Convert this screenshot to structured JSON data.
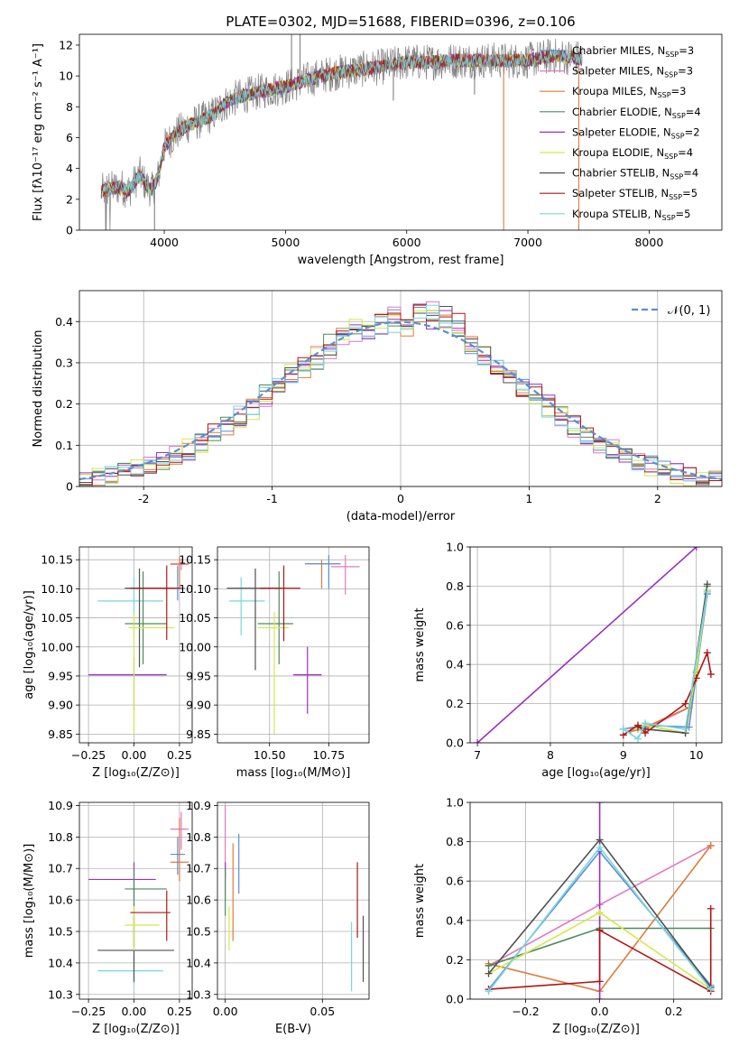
{
  "figure": {
    "title": "PLATE=0302, MJD=51688, FIBERID=0396, z=0.106"
  },
  "chart_data": [
    {
      "id": "spectrum",
      "type": "line",
      "xlabel": "wavelength [Angstrom, rest frame]",
      "ylabel": "Flux [fλ10⁻¹⁷ erg cm⁻² s⁻¹ A⁻¹]",
      "xlim": [
        3300,
        8600
      ],
      "ylim": [
        0,
        12.7
      ],
      "xticks": [
        4000,
        5000,
        6000,
        7000,
        8000
      ],
      "yticks": [
        0,
        2,
        4,
        6,
        8,
        10,
        12
      ],
      "grid": false,
      "legend_position": "top-right",
      "continuum": {
        "x": [
          3480,
          3550,
          3650,
          3700,
          3800,
          3850,
          3900,
          3950,
          4000,
          4100,
          4200,
          4300,
          4400,
          4500,
          4600,
          4800,
          5000,
          5200,
          5400,
          5600,
          5800,
          6000,
          6200,
          6400,
          6600,
          6800,
          7000,
          7200,
          7400,
          7500
        ],
        "y": [
          2.5,
          2.7,
          2.8,
          2.5,
          3.6,
          2.9,
          2.6,
          3.5,
          5.4,
          6.3,
          6.8,
          7.1,
          7.5,
          8.2,
          8.6,
          9.0,
          9.3,
          9.8,
          10.2,
          10.4,
          10.6,
          10.9,
          10.9,
          11.0,
          11.0,
          11.0,
          11.0,
          11.3,
          11.2,
          11.0
        ]
      },
      "noise_spikes": [
        {
          "x": 5050,
          "y": 12.7
        },
        {
          "x": 5120,
          "y": 13.0
        },
        {
          "x": 5890,
          "y": 8.4
        },
        {
          "x": 6560,
          "y": 8.8
        },
        {
          "x": 6800,
          "y": 0.0
        },
        {
          "x": 7420,
          "y": 0.0
        },
        {
          "x": 3520,
          "y": 0.0
        },
        {
          "x": 3920,
          "y": 0.0
        }
      ],
      "series": [
        {
          "name_main": "Chabrier MILES, N",
          "name_sub": "SSP",
          "name_tail": "=3",
          "color": "#5b8ed6"
        },
        {
          "name_main": "Salpeter MILES, N",
          "name_sub": "SSP",
          "name_tail": "=3",
          "color": "#e377c2"
        },
        {
          "name_main": "Kroupa MILES, N",
          "name_sub": "SSP",
          "name_tail": "=3",
          "color": "#e07b39"
        },
        {
          "name_main": "Chabrier ELODIE, N",
          "name_sub": "SSP",
          "name_tail": "=4",
          "color": "#4d8a5c"
        },
        {
          "name_main": "Salpeter ELODIE, N",
          "name_sub": "SSP",
          "name_tail": "=2",
          "color": "#9b30c0"
        },
        {
          "name_main": "Kroupa ELODIE, N",
          "name_sub": "SSP",
          "name_tail": "=4",
          "color": "#d4e84a"
        },
        {
          "name_main": "Chabrier STELIB, N",
          "name_sub": "SSP",
          "name_tail": "=4",
          "color": "#505050"
        },
        {
          "name_main": "Salpeter STELIB, N",
          "name_sub": "SSP",
          "name_tail": "=5",
          "color": "#b01515"
        },
        {
          "name_main": "Kroupa STELIB, N",
          "name_sub": "SSP",
          "name_tail": "=5",
          "color": "#76d7e0"
        }
      ]
    },
    {
      "id": "residuals",
      "type": "line",
      "xlabel": "(data-model)/error",
      "ylabel": "Normed distribution",
      "xlim": [
        -2.5,
        2.5
      ],
      "ylim": [
        0,
        0.475
      ],
      "xticks": [
        -2,
        -1,
        0,
        1,
        2
      ],
      "yticks": [
        0.0,
        0.1,
        0.2,
        0.3,
        0.4
      ],
      "grid": true,
      "legend_position": "top-right",
      "gaussian_label": "𝒩(0, 1)",
      "gaussian_color": "#5b8ed6",
      "bin_width": 0.1
    },
    {
      "id": "age_vs_Z",
      "type": "scatter",
      "xlabel": "Z [log₁₀(Z/Z⊙)]",
      "ylabel": "age  [log₁₀(age/yr)]",
      "xlim": [
        -0.3,
        0.32
      ],
      "ylim": [
        9.835,
        10.172
      ],
      "xticks": [
        -0.25,
        0.0,
        0.25
      ],
      "xtick_labels": [
        "−0.25",
        "0.00",
        "0.25"
      ],
      "yticks": [
        9.85,
        9.9,
        9.95,
        10.0,
        10.05,
        10.1,
        10.15
      ],
      "ytick_labels": [
        "9.85",
        "9.90",
        "9.95",
        "10.00",
        "10.05",
        "10.10",
        "10.15"
      ],
      "grid": true,
      "points": [
        {
          "x": 0.26,
          "xlo": 0.2,
          "xhi": 0.3,
          "y": 10.142,
          "ylo": 10.132,
          "yhi": 10.152,
          "color": "#e377c2"
        },
        {
          "x": 0.25,
          "xlo": 0.2,
          "xhi": 0.3,
          "y": 10.143,
          "ylo": 10.1,
          "yhi": 10.155,
          "color": "#e07b39"
        },
        {
          "x": 0.24,
          "xlo": 0.2,
          "xhi": 0.28,
          "y": 10.101,
          "ylo": 10.08,
          "yhi": 10.14,
          "color": "#5b8ed6"
        },
        {
          "x": 0.0,
          "xlo": -0.25,
          "xhi": 0.18,
          "y": 9.952,
          "ylo": 9.89,
          "yhi": 9.982,
          "color": "#9b30c0"
        },
        {
          "x": 0.0,
          "xlo": -0.2,
          "xhi": 0.16,
          "y": 10.079,
          "ylo": 10.02,
          "yhi": 10.12,
          "color": "#76d7e0"
        },
        {
          "x": 0.03,
          "xlo": -0.05,
          "xhi": 0.22,
          "y": 10.101,
          "ylo": 9.965,
          "yhi": 10.135,
          "color": "#505050"
        },
        {
          "x": 0.05,
          "xlo": -0.05,
          "xhi": 0.18,
          "y": 10.04,
          "ylo": 9.97,
          "yhi": 10.13,
          "color": "#4d8a5c"
        },
        {
          "x": 0.0,
          "xlo": -0.03,
          "xhi": 0.22,
          "y": 10.033,
          "ylo": 9.85,
          "yhi": 10.06,
          "color": "#d4e84a"
        },
        {
          "x": 0.18,
          "xlo": -0.02,
          "xhi": 0.26,
          "y": 10.101,
          "ylo": 10.012,
          "yhi": 10.14,
          "color": "#b01515"
        }
      ]
    },
    {
      "id": "age_vs_mass",
      "type": "scatter",
      "xlabel": "mass [log₁₀(M/M⊙)]",
      "ylabel": "",
      "xlim": [
        10.28,
        10.92
      ],
      "ylim": [
        9.835,
        10.172
      ],
      "xticks": [
        10.5,
        10.75
      ],
      "xtick_labels": [
        "10.50",
        "10.75"
      ],
      "yticks": [
        9.85,
        9.9,
        9.95,
        10.0,
        10.05,
        10.1,
        10.15
      ],
      "ytick_labels": [
        "9.85",
        "9.90",
        "9.95",
        "10.00",
        "10.05",
        "10.10",
        "10.15"
      ],
      "grid": true,
      "points": [
        {
          "x": 10.82,
          "xlo": 10.76,
          "xhi": 10.88,
          "y": 10.138,
          "ylo": 10.09,
          "yhi": 10.158,
          "color": "#e377c2"
        },
        {
          "x": 10.72,
          "xlo": 10.65,
          "xhi": 10.8,
          "y": 10.143,
          "ylo": 10.1,
          "yhi": 10.15,
          "color": "#e07b39"
        },
        {
          "x": 10.75,
          "xlo": 10.65,
          "xhi": 10.8,
          "y": 10.143,
          "ylo": 10.1,
          "yhi": 10.158,
          "color": "#5b8ed6"
        },
        {
          "x": 10.66,
          "xlo": 10.6,
          "xhi": 10.72,
          "y": 9.952,
          "ylo": 9.885,
          "yhi": 10.0,
          "color": "#9b30c0"
        },
        {
          "x": 10.38,
          "xlo": 10.33,
          "xhi": 10.48,
          "y": 10.079,
          "ylo": 10.02,
          "yhi": 10.12,
          "color": "#76d7e0"
        },
        {
          "x": 10.44,
          "xlo": 10.32,
          "xhi": 10.55,
          "y": 10.101,
          "ylo": 9.96,
          "yhi": 10.135,
          "color": "#505050"
        },
        {
          "x": 10.54,
          "xlo": 10.45,
          "xhi": 10.6,
          "y": 10.04,
          "ylo": 9.97,
          "yhi": 10.13,
          "color": "#4d8a5c"
        },
        {
          "x": 10.52,
          "xlo": 10.45,
          "xhi": 10.58,
          "y": 10.033,
          "ylo": 9.85,
          "yhi": 10.06,
          "color": "#d4e84a"
        },
        {
          "x": 10.56,
          "xlo": 10.46,
          "xhi": 10.63,
          "y": 10.101,
          "ylo": 10.01,
          "yhi": 10.14,
          "color": "#b01515"
        }
      ]
    },
    {
      "id": "weight_vs_age",
      "type": "line",
      "xlabel": "age  [log₁₀(age/yr)]",
      "ylabel": "mass weight",
      "xlim": [
        6.9,
        10.35
      ],
      "ylim": [
        0,
        1.0
      ],
      "xticks": [
        7,
        8,
        9,
        10
      ],
      "yticks": [
        0.0,
        0.2,
        0.4,
        0.6,
        0.8,
        1.0
      ],
      "ytick_labels": [
        "0.0",
        "0.2",
        "0.4",
        "0.6",
        "0.8",
        "1.0"
      ],
      "grid": true,
      "series": [
        {
          "color": "#9b30c0",
          "x": [
            7.0,
            10.0
          ],
          "y": [
            0.0,
            1.0
          ]
        },
        {
          "color": "#e377c2",
          "x": [
            9.1,
            9.3,
            9.9,
            10.15
          ],
          "y": [
            0.06,
            0.07,
            0.18,
            0.78
          ]
        },
        {
          "color": "#e07b39",
          "x": [
            9.1,
            9.3,
            9.9,
            10.15
          ],
          "y": [
            0.06,
            0.08,
            0.18,
            0.77
          ]
        },
        {
          "color": "#5b8ed6",
          "x": [
            9.0,
            9.3,
            9.9,
            10.15
          ],
          "y": [
            0.07,
            0.09,
            0.08,
            0.76
          ]
        },
        {
          "color": "#4d8a5c",
          "x": [
            9.2,
            9.3,
            9.85,
            10.0,
            10.15
          ],
          "y": [
            0.07,
            0.09,
            0.05,
            0.36,
            0.8
          ]
        },
        {
          "color": "#d4e84a",
          "x": [
            9.2,
            9.3,
            9.85,
            10.0,
            10.15
          ],
          "y": [
            0.07,
            0.09,
            0.05,
            0.37,
            0.78
          ]
        },
        {
          "color": "#505050",
          "x": [
            9.2,
            9.3,
            9.85,
            10.15
          ],
          "y": [
            0.08,
            0.07,
            0.05,
            0.81
          ]
        },
        {
          "color": "#b01515",
          "x": [
            9.0,
            9.2,
            9.3,
            9.85,
            10.0,
            10.15,
            10.2
          ],
          "y": [
            0.04,
            0.09,
            0.05,
            0.2,
            0.33,
            0.46,
            0.35
          ]
        },
        {
          "color": "#76d7e0",
          "x": [
            9.0,
            9.2,
            9.3,
            9.85,
            10.15
          ],
          "y": [
            0.07,
            0.02,
            0.1,
            0.07,
            0.77
          ]
        }
      ]
    },
    {
      "id": "mass_vs_Z",
      "type": "scatter",
      "xlabel": "Z [log₁₀(Z/Z⊙)]",
      "ylabel": "mass [log₁₀(M/M⊙)]",
      "xlim": [
        -0.3,
        0.32
      ],
      "ylim": [
        10.285,
        10.91
      ],
      "xticks": [
        -0.25,
        0.0,
        0.25
      ],
      "xtick_labels": [
        "−0.25",
        "0.00",
        "0.25"
      ],
      "yticks": [
        10.3,
        10.4,
        10.5,
        10.6,
        10.7,
        10.8,
        10.9
      ],
      "ytick_labels": [
        "10.3",
        "10.4",
        "10.5",
        "10.6",
        "10.7",
        "10.8",
        "10.9"
      ],
      "grid": true,
      "points": [
        {
          "x": 0.26,
          "xlo": 0.2,
          "xhi": 0.3,
          "y": 10.825,
          "ylo": 10.76,
          "yhi": 10.88,
          "color": "#e377c2"
        },
        {
          "x": 0.25,
          "xlo": 0.2,
          "xhi": 0.3,
          "y": 10.72,
          "ylo": 10.66,
          "yhi": 10.86,
          "color": "#e07b39"
        },
        {
          "x": 0.24,
          "xlo": 0.2,
          "xhi": 0.28,
          "y": 10.745,
          "ylo": 10.68,
          "yhi": 10.8,
          "color": "#5b8ed6"
        },
        {
          "x": 0.0,
          "xlo": -0.25,
          "xhi": 0.12,
          "y": 10.665,
          "ylo": 10.6,
          "yhi": 10.72,
          "color": "#9b30c0"
        },
        {
          "x": 0.0,
          "xlo": -0.2,
          "xhi": 0.16,
          "y": 10.375,
          "ylo": 10.33,
          "yhi": 10.42,
          "color": "#76d7e0"
        },
        {
          "x": 0.0,
          "xlo": -0.2,
          "xhi": 0.22,
          "y": 10.44,
          "ylo": 10.34,
          "yhi": 10.55,
          "color": "#505050"
        },
        {
          "x": 0.0,
          "xlo": -0.05,
          "xhi": 0.18,
          "y": 10.635,
          "ylo": 10.45,
          "yhi": 10.7,
          "color": "#4d8a5c"
        },
        {
          "x": 0.0,
          "xlo": -0.05,
          "xhi": 0.14,
          "y": 10.52,
          "ylo": 10.44,
          "yhi": 10.58,
          "color": "#d4e84a"
        },
        {
          "x": 0.18,
          "xlo": -0.02,
          "xhi": 0.2,
          "y": 10.56,
          "ylo": 10.47,
          "yhi": 10.63,
          "color": "#b01515"
        }
      ]
    },
    {
      "id": "mass_vs_ebv",
      "type": "scatter",
      "xlabel": "E(B-V)",
      "ylabel": "",
      "xlim": [
        -0.004,
        0.074
      ],
      "ylim": [
        10.285,
        10.91
      ],
      "xticks": [
        0.0,
        0.05
      ],
      "xtick_labels": [
        "0.00",
        "0.05"
      ],
      "yticks": [
        10.3,
        10.4,
        10.5,
        10.6,
        10.7,
        10.8,
        10.9
      ],
      "ytick_labels": [
        "10.3",
        "10.4",
        "10.5",
        "10.6",
        "10.7",
        "10.8",
        "10.9"
      ],
      "grid": true,
      "points": [
        {
          "x": 0.0,
          "ylo": 10.6,
          "yhi": 10.9,
          "color": "#e377c2"
        },
        {
          "x": 0.004,
          "ylo": 10.47,
          "yhi": 10.78,
          "color": "#e07b39"
        },
        {
          "x": 0.007,
          "ylo": 10.62,
          "yhi": 10.81,
          "color": "#5b8ed6"
        },
        {
          "x": 0.0,
          "ylo": 10.67,
          "yhi": 10.72,
          "color": "#9b30c0"
        },
        {
          "x": 0.065,
          "ylo": 10.31,
          "yhi": 10.53,
          "color": "#76d7e0"
        },
        {
          "x": 0.071,
          "ylo": 10.34,
          "yhi": 10.55,
          "color": "#505050"
        },
        {
          "x": 0.0,
          "ylo": 10.55,
          "yhi": 10.7,
          "color": "#4d8a5c"
        },
        {
          "x": 0.002,
          "ylo": 10.44,
          "yhi": 10.58,
          "color": "#d4e84a"
        },
        {
          "x": 0.068,
          "ylo": 10.48,
          "yhi": 10.72,
          "color": "#b01515"
        }
      ]
    },
    {
      "id": "weight_vs_Z",
      "type": "line",
      "xlabel": "Z [log₁₀(Z/Z⊙)]",
      "ylabel": "mass weight",
      "xlim": [
        -0.35,
        0.33
      ],
      "ylim": [
        0,
        1.0
      ],
      "xticks": [
        -0.2,
        0.0,
        0.2
      ],
      "xtick_labels": [
        "−0.2",
        "0.0",
        "0.2"
      ],
      "yticks": [
        0.0,
        0.2,
        0.4,
        0.6,
        0.8,
        1.0
      ],
      "ytick_labels": [
        "0.0",
        "0.2",
        "0.4",
        "0.6",
        "0.8",
        "1.0"
      ],
      "grid": true,
      "series": [
        {
          "color": "#e377c2",
          "x": [
            -0.3,
            0.0,
            0.3
          ],
          "y": [
            0.17,
            0.48,
            0.78
          ]
        },
        {
          "color": "#e07b39",
          "x": [
            -0.3,
            0.0,
            0.3
          ],
          "y": [
            0.18,
            0.04,
            0.78
          ]
        },
        {
          "color": "#5b8ed6",
          "x": [
            -0.3,
            0.0,
            0.3
          ],
          "y": [
            0.05,
            0.75,
            0.07
          ]
        },
        {
          "color": "#9b30c0",
          "x": [
            0.0,
            0.0
          ],
          "y": [
            0.0,
            1.0
          ]
        },
        {
          "color": "#4d8a5c",
          "x": [
            -0.3,
            0.0,
            0.3
          ],
          "y": [
            0.17,
            0.36,
            0.36
          ]
        },
        {
          "color": "#d4e84a",
          "x": [
            -0.3,
            0.0,
            0.3
          ],
          "y": [
            0.13,
            0.44,
            0.05
          ]
        },
        {
          "color": "#505050",
          "x": [
            -0.3,
            0.0,
            0.3
          ],
          "y": [
            0.13,
            0.81,
            0.06
          ]
        },
        {
          "color": "#b01515",
          "x": [
            -0.3,
            0.0,
            0.0,
            0.3,
            0.3
          ],
          "y": [
            0.05,
            0.09,
            0.35,
            0.04,
            0.46
          ]
        },
        {
          "color": "#76d7e0",
          "x": [
            -0.3,
            0.0,
            0.3
          ],
          "y": [
            0.04,
            0.77,
            0.05
          ]
        }
      ]
    }
  ]
}
